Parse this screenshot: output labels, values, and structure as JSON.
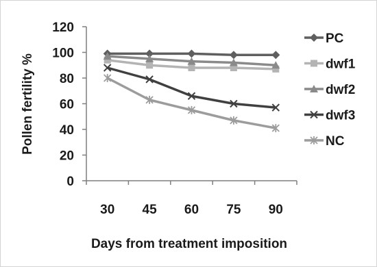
{
  "chart_data": {
    "type": "line",
    "title": "",
    "xlabel": "Days from treatment imposition",
    "ylabel": "Pollen fertility %",
    "categories": [
      "30",
      "45",
      "60",
      "75",
      "90"
    ],
    "ylim": [
      0,
      120
    ],
    "yticks": [
      "0",
      "20",
      "40",
      "60",
      "80",
      "100",
      "120"
    ],
    "grid": false,
    "legend_position": "right",
    "series": [
      {
        "name": "PC",
        "color": "#5f5f5f",
        "marker": "diamond",
        "values": [
          99,
          99,
          99,
          98,
          98
        ]
      },
      {
        "name": "dwf1",
        "color": "#b4b4b4",
        "marker": "square",
        "values": [
          94,
          90,
          88,
          88,
          87
        ]
      },
      {
        "name": "dwf2",
        "color": "#8a8a8a",
        "marker": "triangle",
        "values": [
          97,
          95,
          93,
          92,
          90
        ]
      },
      {
        "name": "dwf3",
        "color": "#404040",
        "marker": "x",
        "values": [
          88,
          79,
          66,
          60,
          57
        ]
      },
      {
        "name": "NC",
        "color": "#9c9c9c",
        "marker": "star",
        "values": [
          80,
          63,
          55,
          47,
          41
        ]
      }
    ]
  }
}
